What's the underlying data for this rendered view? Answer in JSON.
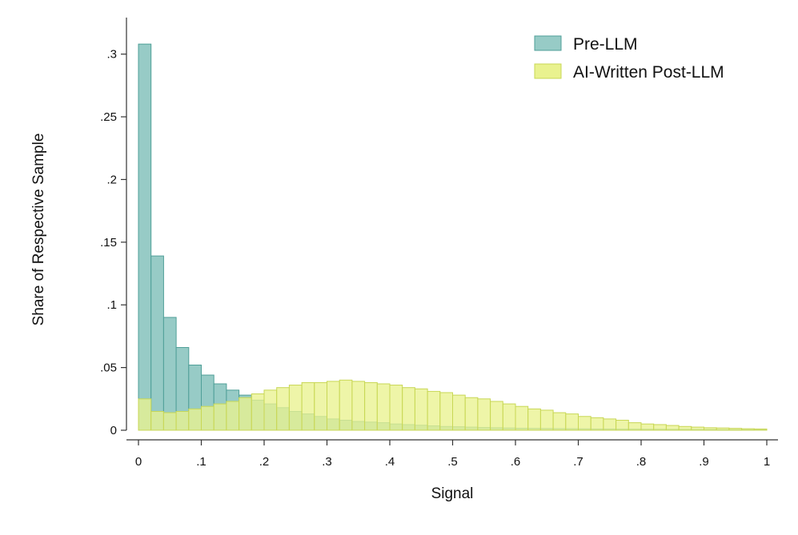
{
  "chart_data": {
    "type": "bar",
    "xlabel": "Signal",
    "ylabel": "Share of Respective Sample",
    "xlim": [
      0,
      1
    ],
    "ylim": [
      0,
      0.3
    ],
    "xticks": [
      {
        "value": 0,
        "label": "0"
      },
      {
        "value": 0.1,
        "label": ".1"
      },
      {
        "value": 0.2,
        "label": ".2"
      },
      {
        "value": 0.3,
        "label": ".3"
      },
      {
        "value": 0.4,
        "label": ".4"
      },
      {
        "value": 0.5,
        "label": ".5"
      },
      {
        "value": 0.6,
        "label": ".6"
      },
      {
        "value": 0.7,
        "label": ".7"
      },
      {
        "value": 0.8,
        "label": ".8"
      },
      {
        "value": 0.9,
        "label": ".9"
      },
      {
        "value": 1,
        "label": "1"
      }
    ],
    "yticks": [
      {
        "value": 0,
        "label": "0"
      },
      {
        "value": 0.05,
        "label": ".05"
      },
      {
        "value": 0.1,
        "label": ".1"
      },
      {
        "value": 0.15,
        "label": ".15"
      },
      {
        "value": 0.2,
        "label": ".2"
      },
      {
        "value": 0.25,
        "label": ".25"
      },
      {
        "value": 0.3,
        "label": ".3"
      }
    ],
    "grid": false,
    "legend_position": "top-right",
    "bin_width": 0.02,
    "x": [
      0.0,
      0.02,
      0.04,
      0.06,
      0.08,
      0.1,
      0.12,
      0.14,
      0.16,
      0.18,
      0.2,
      0.22,
      0.24,
      0.26,
      0.28,
      0.3,
      0.32,
      0.34,
      0.36,
      0.38,
      0.4,
      0.42,
      0.44,
      0.46,
      0.48,
      0.5,
      0.52,
      0.54,
      0.56,
      0.58,
      0.6,
      0.62,
      0.64,
      0.66,
      0.68,
      0.7,
      0.72,
      0.74,
      0.76,
      0.78,
      0.8,
      0.82,
      0.84,
      0.86,
      0.88,
      0.9,
      0.92,
      0.94,
      0.96,
      0.98
    ],
    "series": [
      {
        "name": "Pre-LLM",
        "color": "#97cbc6",
        "stroke": "#4f9f98",
        "values": [
          0.308,
          0.139,
          0.09,
          0.066,
          0.052,
          0.044,
          0.037,
          0.032,
          0.028,
          0.024,
          0.021,
          0.018,
          0.015,
          0.013,
          0.011,
          0.009,
          0.008,
          0.007,
          0.0065,
          0.006,
          0.005,
          0.0045,
          0.004,
          0.0035,
          0.003,
          0.0028,
          0.0025,
          0.0022,
          0.002,
          0.0018,
          0.0016,
          0.0015,
          0.0014,
          0.0013,
          0.0012,
          0.0011,
          0.001,
          0.001,
          0.0009,
          0.0009,
          0.0008,
          0.0008,
          0.0007,
          0.0007,
          0.0006,
          0.0006,
          0.0005,
          0.0005,
          0.0004,
          0.0004
        ]
      },
      {
        "name": "AI-Written Post-LLM",
        "color": "#e9f28f",
        "stroke": "#c8d755",
        "values": [
          0.025,
          0.015,
          0.014,
          0.015,
          0.017,
          0.019,
          0.021,
          0.023,
          0.026,
          0.029,
          0.032,
          0.034,
          0.036,
          0.038,
          0.038,
          0.039,
          0.04,
          0.039,
          0.038,
          0.037,
          0.036,
          0.034,
          0.033,
          0.031,
          0.03,
          0.028,
          0.026,
          0.025,
          0.023,
          0.021,
          0.019,
          0.017,
          0.016,
          0.014,
          0.013,
          0.011,
          0.01,
          0.009,
          0.008,
          0.006,
          0.005,
          0.0045,
          0.0038,
          0.003,
          0.0025,
          0.002,
          0.0018,
          0.0015,
          0.0012,
          0.001
        ]
      }
    ]
  }
}
